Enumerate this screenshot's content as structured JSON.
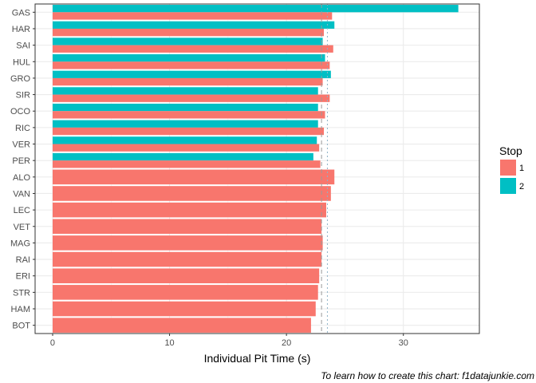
{
  "chart_data": {
    "type": "bar",
    "orientation": "horizontal",
    "categories": [
      "GAS",
      "HAR",
      "SAI",
      "HUL",
      "GRO",
      "SIR",
      "OCO",
      "RIC",
      "VER",
      "PER",
      "ALO",
      "VAN",
      "LEC",
      "VET",
      "MAG",
      "RAI",
      "ERI",
      "STR",
      "HAM",
      "BOT"
    ],
    "series": [
      {
        "name": "1",
        "color": "#F8766D",
        "values": [
          23.9,
          23.2,
          24.0,
          23.7,
          23.1,
          23.7,
          23.3,
          23.2,
          22.8,
          22.9,
          24.1,
          23.8,
          23.4,
          23.0,
          23.1,
          23.0,
          22.8,
          22.7,
          22.5,
          22.1
        ]
      },
      {
        "name": "2",
        "color": "#00BFC4",
        "values": [
          34.7,
          24.1,
          23.1,
          23.3,
          23.8,
          22.7,
          22.7,
          22.7,
          22.6,
          22.3,
          null,
          null,
          null,
          null,
          null,
          null,
          null,
          null,
          null,
          null
        ]
      }
    ],
    "reference_lines": [
      23.0,
      23.5
    ],
    "xlabel": "Individual Pit Time (s)",
    "ylabel": "",
    "xlim": [
      -1.5,
      36.5
    ],
    "xticks": [
      0,
      10,
      20,
      30
    ],
    "legend": {
      "title": "Stop",
      "placement": "right"
    },
    "grid": true,
    "caption": "To learn how to create this chart: f1datajunkie.com"
  }
}
